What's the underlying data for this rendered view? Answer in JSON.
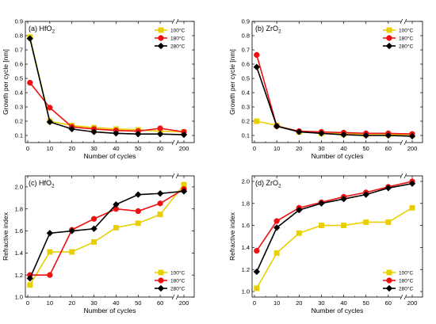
{
  "figure": {
    "panels": [
      {
        "id": "a",
        "label_prefix": "(a) HfO",
        "label_sub": "2"
      },
      {
        "id": "b",
        "label_prefix": "(b) ZrO",
        "label_sub": "2"
      },
      {
        "id": "c",
        "label_prefix": "(c) HfO",
        "label_sub": "2"
      },
      {
        "id": "d",
        "label_prefix": "(d) ZrO",
        "label_sub": "2"
      }
    ]
  },
  "chart_data": [
    {
      "type": "line",
      "title": "(a) HfO2",
      "xlabel": "Number of cycles",
      "ylabel": "Growth per cycle [nm]",
      "xticks": [
        "0",
        "10",
        "20",
        "30",
        "40",
        "50",
        "60",
        "200"
      ],
      "xbreak_between": [
        "60",
        "200"
      ],
      "yticks": [
        "0.1",
        "0.2",
        "0.3",
        "0.4",
        "0.5",
        "0.6",
        "0.7",
        "0.8",
        "0.9"
      ],
      "ylim": [
        0.05,
        0.9
      ],
      "legend_position": "top-right",
      "series": [
        {
          "name": "100°C",
          "color": "#e8d000",
          "marker": "square",
          "x": [
            1,
            10,
            20,
            30,
            40,
            50,
            60,
            200
          ],
          "y": [
            0.79,
            0.2,
            0.17,
            0.155,
            0.145,
            0.14,
            0.13,
            0.125
          ]
        },
        {
          "name": "180°C",
          "color": "#ee1111",
          "marker": "circle",
          "x": [
            1,
            10,
            20,
            30,
            40,
            50,
            60,
            200
          ],
          "y": [
            0.47,
            0.295,
            0.16,
            0.145,
            0.135,
            0.13,
            0.15,
            0.125
          ]
        },
        {
          "name": "280°C",
          "color": "#000000",
          "marker": "diamond",
          "x": [
            1,
            10,
            20,
            30,
            40,
            50,
            60,
            200
          ],
          "y": [
            0.78,
            0.195,
            0.145,
            0.125,
            0.115,
            0.11,
            0.11,
            0.105
          ]
        }
      ]
    },
    {
      "type": "line",
      "title": "(b) ZrO2",
      "xlabel": "Number of cycles",
      "ylabel": "Growth per cycle [nm]",
      "xticks": [
        "0",
        "10",
        "20",
        "30",
        "40",
        "50",
        "60",
        "200"
      ],
      "xbreak_between": [
        "60",
        "200"
      ],
      "yticks": [
        "0.1",
        "0.2",
        "0.3",
        "0.4",
        "0.5",
        "0.6",
        "0.7",
        "0.8",
        "0.9"
      ],
      "ylim": [
        0.05,
        0.9
      ],
      "legend_position": "top-right",
      "series": [
        {
          "name": "100°C",
          "color": "#e8d000",
          "marker": "square",
          "x": [
            1,
            10,
            20,
            30,
            40,
            50,
            60,
            200
          ],
          "y": [
            0.2,
            0.17,
            0.125,
            0.115,
            0.11,
            0.105,
            0.105,
            0.105
          ]
        },
        {
          "name": "180°C",
          "color": "#ee1111",
          "marker": "circle",
          "x": [
            1,
            10,
            20,
            30,
            40,
            50,
            60,
            200
          ],
          "y": [
            0.665,
            0.165,
            0.13,
            0.125,
            0.12,
            0.115,
            0.115,
            0.11
          ]
        },
        {
          "name": "280°C",
          "color": "#000000",
          "marker": "diamond",
          "x": [
            1,
            10,
            20,
            30,
            40,
            50,
            60,
            200
          ],
          "y": [
            0.58,
            0.165,
            0.125,
            0.115,
            0.105,
            0.1,
            0.1,
            0.095
          ]
        }
      ]
    },
    {
      "type": "line",
      "title": "(c) HfO2",
      "xlabel": "Number of cycles",
      "ylabel": "Refractive index",
      "xticks": [
        "0",
        "10",
        "20",
        "30",
        "40",
        "50",
        "60",
        "200"
      ],
      "xbreak_between": [
        "60",
        "200"
      ],
      "yticks": [
        "1.0",
        "1.2",
        "1.4",
        "1.6",
        "1.8",
        "2.0"
      ],
      "ylim": [
        1.0,
        2.1
      ],
      "legend_position": "bottom-right",
      "series": [
        {
          "name": "100°C",
          "color": "#e8d000",
          "marker": "square",
          "x": [
            1,
            10,
            20,
            30,
            40,
            50,
            60,
            200
          ],
          "y": [
            1.11,
            1.41,
            1.41,
            1.5,
            1.63,
            1.67,
            1.75,
            2.02
          ]
        },
        {
          "name": "180°C",
          "color": "#ee1111",
          "marker": "circle",
          "x": [
            1,
            10,
            20,
            30,
            40,
            50,
            60,
            200
          ],
          "y": [
            1.2,
            1.2,
            1.61,
            1.71,
            1.8,
            1.78,
            1.85,
            1.98
          ]
        },
        {
          "name": "280°C",
          "color": "#000000",
          "marker": "diamond",
          "x": [
            1,
            10,
            20,
            30,
            40,
            50,
            60,
            200
          ],
          "y": [
            1.17,
            1.58,
            1.6,
            1.62,
            1.84,
            1.93,
            1.94,
            1.96
          ]
        }
      ]
    },
    {
      "type": "line",
      "title": "(d) ZrO2",
      "xlabel": "Number of cycles",
      "ylabel": "Refractive index",
      "xticks": [
        "0",
        "10",
        "20",
        "30",
        "40",
        "50",
        "60",
        "200"
      ],
      "xbreak_between": [
        "60",
        "200"
      ],
      "yticks": [
        "1.0",
        "1.2",
        "1.4",
        "1.6",
        "1.8",
        "2.0"
      ],
      "ylim": [
        0.95,
        2.05
      ],
      "legend_position": "bottom-right",
      "series": [
        {
          "name": "100°C",
          "color": "#e8d000",
          "marker": "square",
          "x": [
            1,
            10,
            20,
            30,
            40,
            50,
            60,
            200
          ],
          "y": [
            1.03,
            1.35,
            1.53,
            1.6,
            1.6,
            1.63,
            1.63,
            1.76
          ]
        },
        {
          "name": "180°C",
          "color": "#ee1111",
          "marker": "circle",
          "x": [
            1,
            10,
            20,
            30,
            40,
            50,
            60,
            200
          ],
          "y": [
            1.37,
            1.64,
            1.76,
            1.81,
            1.86,
            1.9,
            1.95,
            2.0
          ]
        },
        {
          "name": "280°C",
          "color": "#000000",
          "marker": "diamond",
          "x": [
            1,
            10,
            20,
            30,
            40,
            50,
            60,
            200
          ],
          "y": [
            1.18,
            1.58,
            1.74,
            1.8,
            1.84,
            1.88,
            1.94,
            1.98
          ]
        }
      ]
    }
  ]
}
